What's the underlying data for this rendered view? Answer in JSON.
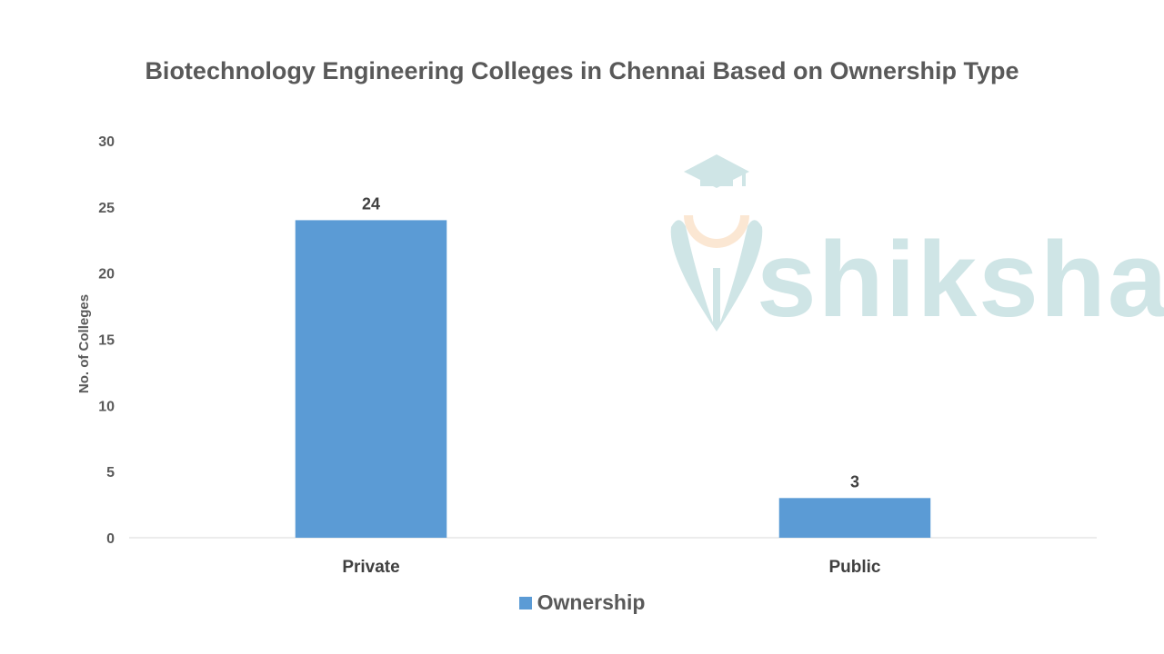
{
  "chart_data": {
    "type": "bar",
    "title": "Biotechnology Engineering Colleges in Chennai Based on Ownership Type",
    "xlabel": "",
    "ylabel": "No. of Colleges",
    "categories": [
      "Private",
      "Public"
    ],
    "series": [
      {
        "name": "Ownership",
        "values": [
          24,
          3
        ],
        "color": "#5b9bd5"
      }
    ],
    "ylim": [
      0,
      30
    ],
    "yticks": [
      0,
      5,
      10,
      15,
      20,
      25,
      30
    ],
    "data_labels": [
      "24",
      "3"
    ],
    "grid": false,
    "legend_position": "bottom"
  },
  "watermark": {
    "text": "shiksha",
    "color": "#cfe5e6",
    "accent": "#fbe7d3"
  }
}
